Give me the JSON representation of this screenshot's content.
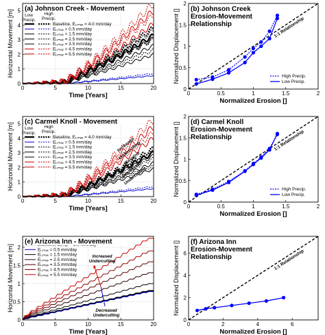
{
  "chart_data": [
    {
      "id": "a",
      "type": "line",
      "title": "(a) Johnson Creek - Movement",
      "xlabel": "Time [Years]",
      "ylabel": "Horizontal Movement [m]",
      "xlim": [
        0,
        20
      ],
      "ylim": [
        0,
        5.5
      ],
      "xticks": [
        "0",
        "5",
        "10",
        "15",
        "20"
      ],
      "yticks": [
        "0",
        "1",
        "2",
        "3",
        "4",
        "5"
      ],
      "grid": true,
      "legend": {
        "position": "upper-left",
        "header": [
          "Low Precip.",
          "High Precip."
        ],
        "entries": [
          "Baseline, Eᵢ,ₘₐₓ = 4.0 mm/day",
          "Eᵢ,ₘₐₓ = 0.5 mm/day",
          "Eᵢ,ₘₐₓ = 1.5 mm/day",
          "Eᵢ,ₘₐₓ = 2.5 mm/day",
          "Eᵢ,ₘₐₓ = 3.5 mm/day",
          "Eᵢ,ₘₐₓ = 4.5 mm/day",
          "Eᵢ,ₘₐₓ = 5.5 mm/day"
        ]
      },
      "series": [
        {
          "color": "#0000cc",
          "low_end": 0.55,
          "high_end": 0.7,
          "width": 1
        },
        {
          "color": "#000000",
          "low_end": 2.0,
          "high_end": 2.3,
          "width": 1
        },
        {
          "color": "#000000",
          "low_end": 2.6,
          "high_end": 3.0,
          "width": 1
        },
        {
          "color": "#000000",
          "low_end": 3.1,
          "high_end": 3.6,
          "width": 1
        },
        {
          "color": "#000000",
          "low_end": 3.3,
          "high_end": 3.8,
          "width": 2.2
        },
        {
          "color": "#cc0000",
          "low_end": 4.1,
          "high_end": 4.7,
          "width": 1
        },
        {
          "color": "#cc0000",
          "low_end": 5.0,
          "high_end": 5.5,
          "width": 1
        }
      ],
      "onset": 6,
      "steps": 0
    },
    {
      "id": "c",
      "type": "line",
      "title": "(c) Carmel Knoll - Movement",
      "xlabel": "Time [Years]",
      "ylabel": "Horizontal Movement [m]",
      "xlim": [
        0,
        20
      ],
      "ylim": [
        0,
        5.5
      ],
      "xticks": [
        "0",
        "5",
        "10",
        "15",
        "20"
      ],
      "yticks": [
        "0",
        "1",
        "2",
        "3",
        "4",
        "5"
      ],
      "grid": true,
      "legend": {
        "position": "upper-left",
        "header": [
          "Low Precip.",
          "High Precip."
        ],
        "entries": [
          "Baseline, Eᵢ,ₘₐₓ = 4.0 mm/day",
          "Eᵢ,ₘₐₓ = 0.5 mm/day",
          "Eᵢ,ₘₐₓ = 1.5 mm/day",
          "Eᵢ,ₘₐₓ = 2.5 mm/day",
          "Eᵢ,ₘₐₓ = 3.5 mm/day",
          "Eᵢ,ₘₐₓ = 4.5 mm/day",
          "Eᵢ,ₘₐₓ = 5.5 mm/day"
        ]
      },
      "annotations": [
        "Increased Undercutting",
        "Baseline",
        "Decreased Undercutting"
      ],
      "series": [
        {
          "color": "#0000cc",
          "low_end": 0.55,
          "high_end": 0.7,
          "width": 1
        },
        {
          "color": "#000000",
          "low_end": 1.9,
          "high_end": 2.1,
          "width": 1
        },
        {
          "color": "#000000",
          "low_end": 2.3,
          "high_end": 2.6,
          "width": 1
        },
        {
          "color": "#000000",
          "low_end": 2.8,
          "high_end": 3.1,
          "width": 1
        },
        {
          "color": "#000000",
          "low_end": 3.0,
          "high_end": 3.3,
          "width": 2.2
        },
        {
          "color": "#cc0000",
          "low_end": 4.0,
          "high_end": 4.4,
          "width": 1
        },
        {
          "color": "#cc0000",
          "low_end": 4.8,
          "high_end": 5.3,
          "width": 1
        }
      ],
      "onset": 6,
      "steps": 0
    },
    {
      "id": "e",
      "type": "line",
      "title": "(e) Arizona Inn - Movement",
      "xlabel": "Time [Years]",
      "ylabel": "Horizontal Movement [m]",
      "xlim": [
        0,
        20
      ],
      "ylim": [
        0,
        2.3
      ],
      "xticks": [
        "0",
        "5",
        "10",
        "15",
        "20"
      ],
      "yticks": [
        "0",
        "0.5",
        "1",
        "1.5",
        "2"
      ],
      "grid": true,
      "legend": {
        "position": "upper-left",
        "entries": [
          "Baseline, Eᵢ,ₘₐₓ = 1.0 mm/day",
          "Eᵢ,ₘₐₓ = 0.5 mm/day",
          "Eᵢ,ₘₐₓ = 1.5 mm/day",
          "Eᵢ,ₘₐₓ = 2.5 mm/day",
          "Eᵢ,ₘₐₓ = 3.5 mm/day",
          "Eᵢ,ₘₐₓ = 4.5 mm/day",
          "Eᵢ,ₘₐₓ = 5.5 mm/day"
        ]
      },
      "annotations": [
        "Increased Undercutting",
        "Decreased Undercutting"
      ],
      "series": [
        {
          "color": "#000000",
          "end": 0.8,
          "width": 2.2
        },
        {
          "color": "#0000cc",
          "end": 0.78,
          "width": 1
        },
        {
          "color": "#000000",
          "end": 1.0,
          "width": 1
        },
        {
          "color": "#2a0000",
          "end": 1.3,
          "width": 1
        },
        {
          "color": "#5a0000",
          "end": 1.6,
          "width": 1
        },
        {
          "color": "#900000",
          "end": 1.9,
          "width": 1
        },
        {
          "color": "#cc0000",
          "end": 2.25,
          "width": 1
        }
      ],
      "onset": 0,
      "steps": 20
    },
    {
      "id": "b",
      "type": "scatter",
      "title": "(b) Johnson Creek Erosion-Movement Relationship",
      "title_lines": [
        "(b) Johnson Creek",
        "Erosion-Movement",
        "Relationship"
      ],
      "xlabel": "Normalized Erosion []",
      "ylabel": "Normalized Displacement []",
      "xlim": [
        0,
        2
      ],
      "ylim": [
        0,
        2
      ],
      "xticks": [
        "0",
        "0.5",
        "1",
        "1.5",
        "2"
      ],
      "yticks": [
        "0",
        "0.5",
        "1",
        "1.5",
        "2"
      ],
      "relationship_label": "1:1 Relationship",
      "legend": {
        "position": "lower-right",
        "entries": [
          "High Precip.",
          "Low Precip."
        ]
      },
      "series": [
        {
          "name": "High Precip.",
          "dashed": true,
          "x": [
            0.12,
            0.37,
            0.62,
            0.87,
            1.0,
            1.12,
            1.25,
            1.37
          ],
          "y": [
            0.22,
            0.28,
            0.45,
            0.75,
            0.95,
            1.1,
            1.35,
            1.72
          ]
        },
        {
          "name": "Low Precip.",
          "dashed": false,
          "x": [
            0.12,
            0.37,
            0.62,
            0.87,
            1.0,
            1.12,
            1.25,
            1.37
          ],
          "y": [
            0.12,
            0.23,
            0.38,
            0.62,
            0.85,
            1.0,
            1.18,
            1.65
          ]
        }
      ]
    },
    {
      "id": "d",
      "type": "scatter",
      "title": "(d) Carmel Knoll Erosion-Movement Relationship",
      "title_lines": [
        "(d) Carmel Knoll",
        "Erosion-Movement",
        "Relationship"
      ],
      "xlabel": "Normalized Erosion []",
      "ylabel": "Normalized Displacement []",
      "xlim": [
        0,
        2
      ],
      "ylim": [
        0,
        2
      ],
      "xticks": [
        "0",
        "0.5",
        "1",
        "1.5",
        "2"
      ],
      "yticks": [
        "0",
        "0.5",
        "1",
        "1.5",
        "2"
      ],
      "relationship_label": "1:1 Relationship",
      "legend": {
        "position": "lower-right",
        "entries": [
          "High Precip.",
          "Low Precip."
        ]
      },
      "series": [
        {
          "name": "High Precip.",
          "dashed": true,
          "x": [
            0.12,
            0.37,
            0.62,
            0.87,
            1.0,
            1.12,
            1.25,
            1.37
          ],
          "y": [
            0.18,
            0.3,
            0.48,
            0.73,
            0.9,
            1.05,
            1.25,
            1.58
          ]
        },
        {
          "name": "Low Precip.",
          "dashed": false,
          "x": [
            0.12,
            0.37,
            0.62,
            0.87,
            1.0,
            1.12,
            1.25,
            1.37
          ],
          "y": [
            0.16,
            0.28,
            0.46,
            0.72,
            0.88,
            1.03,
            1.22,
            1.6
          ]
        }
      ]
    },
    {
      "id": "f",
      "type": "scatter",
      "title": "(f) Arizona Inn Erosion-Movement Relationship",
      "title_lines": [
        "(f) Arizona Inn",
        "Erosion-Movement",
        "Relationship"
      ],
      "xlabel": "Normalized Erosion []",
      "ylabel": "Normalized Displacement []",
      "xlim": [
        0,
        7.5
      ],
      "ylim": [
        0,
        7.5
      ],
      "xticks": [
        "0",
        "2",
        "4",
        "6"
      ],
      "yticks": [
        "0",
        "2",
        "4",
        "6"
      ],
      "relationship_label": "1:1 Relationship",
      "series": [
        {
          "name": "",
          "dashed": false,
          "x": [
            0.5,
            1.0,
            1.5,
            2.5,
            3.5,
            4.5,
            5.5
          ],
          "y": [
            0.85,
            1.0,
            1.1,
            1.3,
            1.5,
            1.7,
            2.0
          ]
        }
      ]
    }
  ]
}
